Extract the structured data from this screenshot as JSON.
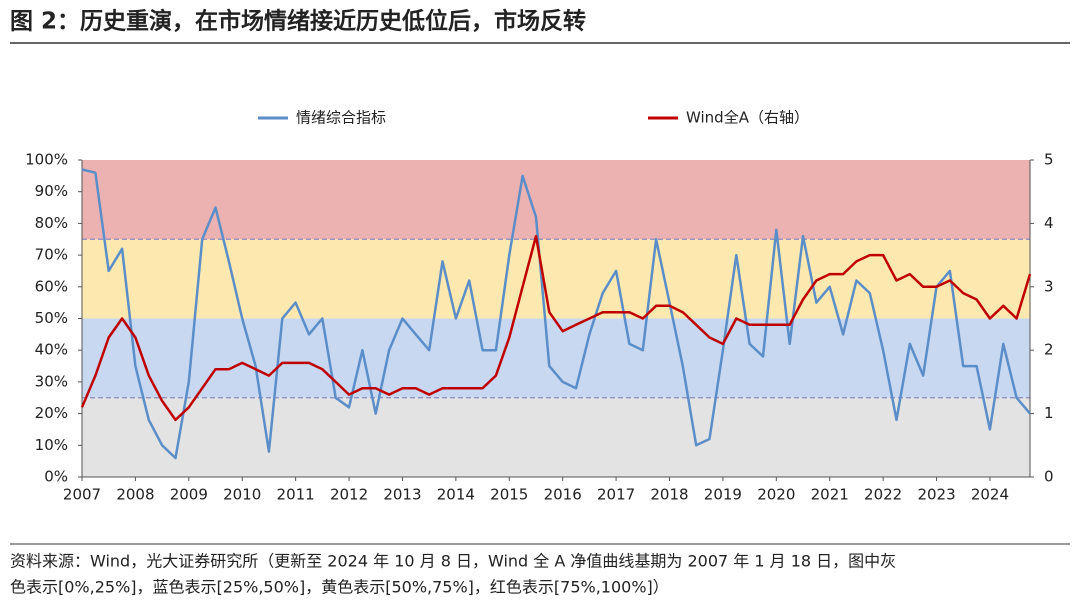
{
  "chart_data": {
    "type": "line",
    "title": "图 2：历史重演，在市场情绪接近历史低位后，市场反转",
    "x": [
      2007,
      2007.25,
      2007.5,
      2007.75,
      2008,
      2008.25,
      2008.5,
      2008.75,
      2009,
      2009.25,
      2009.5,
      2009.75,
      2010,
      2010.25,
      2010.5,
      2010.75,
      2011,
      2011.25,
      2011.5,
      2011.75,
      2012,
      2012.25,
      2012.5,
      2012.75,
      2013,
      2013.25,
      2013.5,
      2013.75,
      2014,
      2014.25,
      2014.5,
      2014.75,
      2015,
      2015.25,
      2015.5,
      2015.75,
      2016,
      2016.25,
      2016.5,
      2016.75,
      2017,
      2017.25,
      2017.5,
      2017.75,
      2018,
      2018.25,
      2018.5,
      2018.75,
      2019,
      2019.25,
      2019.5,
      2019.75,
      2020,
      2020.25,
      2020.5,
      2020.75,
      2021,
      2021.25,
      2021.5,
      2021.75,
      2022,
      2022.25,
      2022.5,
      2022.75,
      2023,
      2023.25,
      2023.5,
      2023.75,
      2024,
      2024.25,
      2024.5,
      2024.75
    ],
    "series": [
      {
        "name": "情绪综合指标",
        "color": "#5b8ec9",
        "axis": "y",
        "values": [
          97,
          96,
          65,
          72,
          35,
          18,
          10,
          6,
          30,
          75,
          85,
          68,
          50,
          35,
          8,
          50,
          55,
          45,
          50,
          25,
          22,
          40,
          20,
          40,
          50,
          45,
          40,
          68,
          50,
          62,
          40,
          40,
          70,
          95,
          82,
          35,
          30,
          28,
          45,
          58,
          65,
          42,
          40,
          75,
          55,
          35,
          10,
          12,
          40,
          70,
          42,
          38,
          78,
          42,
          76,
          55,
          60,
          45,
          62,
          58,
          40,
          18,
          42,
          32,
          60,
          65,
          35,
          35,
          15,
          42,
          25,
          20
        ]
      },
      {
        "name": "Wind全A（右轴）",
        "color": "#c00000",
        "axis": "y2",
        "values": [
          1.1,
          1.6,
          2.2,
          2.5,
          2.2,
          1.6,
          1.2,
          0.9,
          1.1,
          1.4,
          1.7,
          1.7,
          1.8,
          1.7,
          1.6,
          1.8,
          1.8,
          1.8,
          1.7,
          1.5,
          1.3,
          1.4,
          1.4,
          1.3,
          1.4,
          1.4,
          1.3,
          1.4,
          1.4,
          1.4,
          1.4,
          1.6,
          2.2,
          3.0,
          3.8,
          2.6,
          2.3,
          2.4,
          2.5,
          2.6,
          2.6,
          2.6,
          2.5,
          2.7,
          2.7,
          2.6,
          2.4,
          2.2,
          2.1,
          2.5,
          2.4,
          2.4,
          2.4,
          2.4,
          2.8,
          3.1,
          3.2,
          3.2,
          3.4,
          3.5,
          3.5,
          3.1,
          3.2,
          3.0,
          3.0,
          3.1,
          2.9,
          2.8,
          2.5,
          2.7,
          2.5,
          3.2
        ]
      }
    ],
    "xlim": [
      2007,
      2024.75
    ],
    "xticks": [
      2007,
      2008,
      2009,
      2010,
      2011,
      2012,
      2013,
      2014,
      2015,
      2016,
      2017,
      2018,
      2019,
      2020,
      2021,
      2022,
      2023,
      2024
    ],
    "ylim": [
      0,
      100
    ],
    "yticks": [
      {
        "value": 0,
        "label": "0%"
      },
      {
        "value": 10,
        "label": "10%"
      },
      {
        "value": 20,
        "label": "20%"
      },
      {
        "value": 30,
        "label": "30%"
      },
      {
        "value": 40,
        "label": "40%"
      },
      {
        "value": 50,
        "label": "50%"
      },
      {
        "value": 60,
        "label": "60%"
      },
      {
        "value": 70,
        "label": "70%"
      },
      {
        "value": 80,
        "label": "80%"
      },
      {
        "value": 90,
        "label": "90%"
      },
      {
        "value": 100,
        "label": "100%"
      }
    ],
    "y2lim": [
      0,
      5
    ],
    "y2ticks": [
      0,
      1,
      2,
      3,
      4,
      5
    ],
    "bands": [
      {
        "from": 0,
        "to": 25,
        "color": "#e3e3e3"
      },
      {
        "from": 25,
        "to": 50,
        "color": "#c7d8f0"
      },
      {
        "from": 50,
        "to": 75,
        "color": "#fde9b0"
      },
      {
        "from": 75,
        "to": 100,
        "color": "#ecb2b2"
      }
    ],
    "reference_lines": [
      25,
      75
    ],
    "legend": "top"
  },
  "source_note": [
    "资料来源：Wind，光大证券研究所（更新至 2024 年 10 月 8 日，Wind 全 A 净值曲线基期为 2007 年 1 月 18 日，图中灰",
    "色表示[0%,25%]，蓝色表示[25%,50%]，黄色表示[50%,75%]，红色表示[75%,100%]）"
  ]
}
